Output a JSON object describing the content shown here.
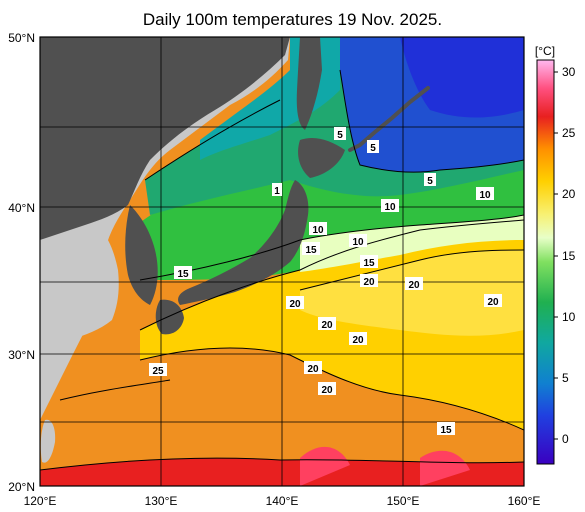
{
  "title": "Daily 100m temperatures 19 Nov. 2025.",
  "map": {
    "lon_labels": [
      "120°E",
      "130°E",
      "140°E",
      "150°E",
      "160°E"
    ],
    "lat_labels": [
      "50°N",
      "40°N",
      "30°N",
      "20°N"
    ],
    "contour_labels": [
      "5",
      "5",
      "5",
      "10",
      "10",
      "10",
      "10",
      "15",
      "15",
      "15",
      "15",
      "20",
      "20",
      "20",
      "20",
      "20",
      "20",
      "20",
      "20",
      "25",
      "1"
    ]
  },
  "colorbar": {
    "unit": "[°C]",
    "ticks": [
      "30",
      "25",
      "20",
      "15",
      "10",
      "5",
      "0"
    ],
    "colors": {
      "c30": "#ffb0f0",
      "c28": "#ff5080",
      "c25": "#e82020",
      "c22": "#ff8c00",
      "c20": "#ffd000",
      "c18": "#f8f070",
      "c16": "#e8ffc0",
      "c14": "#80e060",
      "c12": "#30c030",
      "c10": "#20b060",
      "c8": "#10a0a0",
      "c5": "#1080d0",
      "c2": "#2040e0",
      "c0": "#4000c0"
    }
  },
  "land_colors": {
    "japan": "#505050",
    "continent": "#c8c8c8"
  }
}
